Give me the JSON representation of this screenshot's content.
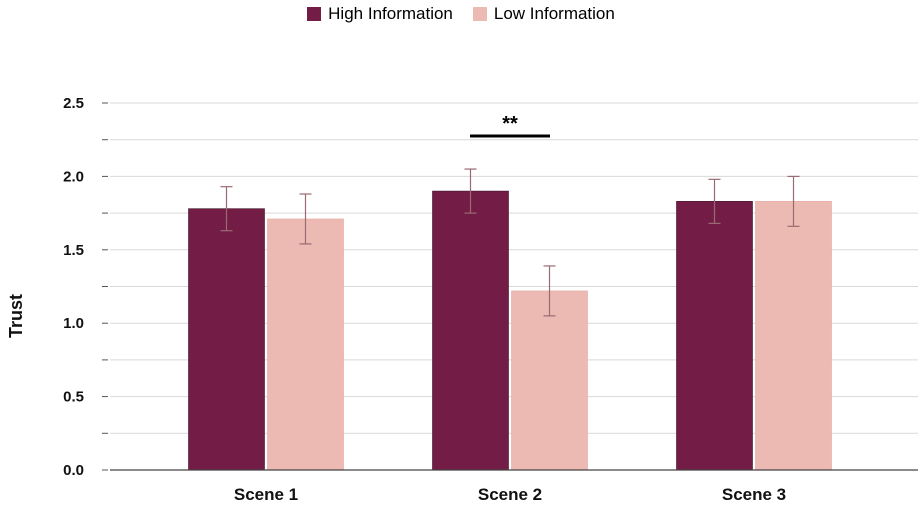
{
  "chart_data": {
    "type": "bar",
    "categories": [
      "Scene 1",
      "Scene 2",
      "Scene 3"
    ],
    "series": [
      {
        "name": "High Information",
        "color": "#721c46",
        "values": [
          1.78,
          1.9,
          1.83
        ],
        "errors": [
          0.15,
          0.15,
          0.15
        ]
      },
      {
        "name": "Low Information",
        "color": "#ecbab3",
        "values": [
          1.71,
          1.22,
          1.83
        ],
        "errors": [
          0.17,
          0.17,
          0.17
        ]
      }
    ],
    "xlabel": "",
    "ylabel": "Trust",
    "ylim": [
      0,
      2.5
    ],
    "yticks": [
      "0.0",
      "0.5",
      "1.0",
      "1.5",
      "2.0",
      "2.5"
    ],
    "grid": true,
    "legend_position": "top-center",
    "annotation": {
      "text": "**",
      "category": "Scene 2"
    }
  }
}
